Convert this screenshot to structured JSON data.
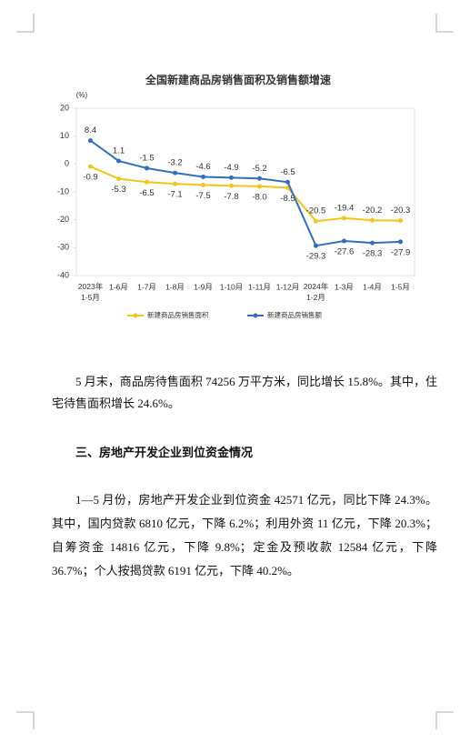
{
  "chart_data": {
    "type": "line",
    "title": "全国新建商品房销售面积及销售额增速",
    "ylabel": "(%)",
    "categories": [
      "2023年\n1-5月",
      "1-6月",
      "1-7月",
      "1-8月",
      "1-9月",
      "1-10月",
      "1-11月",
      "1-12月",
      "2024年\n1-2月",
      "1-3月",
      "1-4月",
      "1-5月"
    ],
    "series": [
      {
        "name": "新建商品房销售面积",
        "color": "#f5c518",
        "values": [
          -0.9,
          -5.3,
          -6.5,
          -7.1,
          -7.5,
          -7.8,
          -8.0,
          -8.5,
          -20.5,
          -19.4,
          -20.2,
          -20.3
        ],
        "value_labels": [
          "-0.9",
          "-5.3",
          "-6.5",
          "-7.1",
          "-7.5",
          "-7.8",
          "-8.0",
          "-8.5",
          "-20.5",
          "-19.4",
          "-20.2",
          "-20.3"
        ]
      },
      {
        "name": "新建商品房销售额",
        "color": "#2e6fc1",
        "values": [
          8.4,
          1.1,
          -1.5,
          -3.2,
          -4.6,
          -4.9,
          -5.2,
          -6.5,
          -29.3,
          -27.6,
          -28.3,
          -27.9
        ]
      }
    ],
    "ylim": [
      -40,
      20
    ],
    "yticks": [
      -40,
      -30,
      -20,
      -10,
      0,
      10,
      20
    ],
    "grid": false,
    "legend": "bottom"
  },
  "document": {
    "blocks": [
      "5 月末，商品房待售面积 74256 万平方米，同比增长 15.8%。其中，住宅待售面积增长 24.6%。",
      "三、房地产开发企业到位资金情况",
      "1—5 月份，房地产开发企业到位资金 42571 亿元，同比下降 24.3%。其中，国内贷款 6810 亿元，下降 6.2%；利用外资 11 亿元，下降 20.3%；自筹资金 14816 亿元，下降 9.8%；定金及预收款 12584 亿元，下降 36.7%；个人按揭贷款 6191 亿元，下降 40.2%。"
    ]
  }
}
